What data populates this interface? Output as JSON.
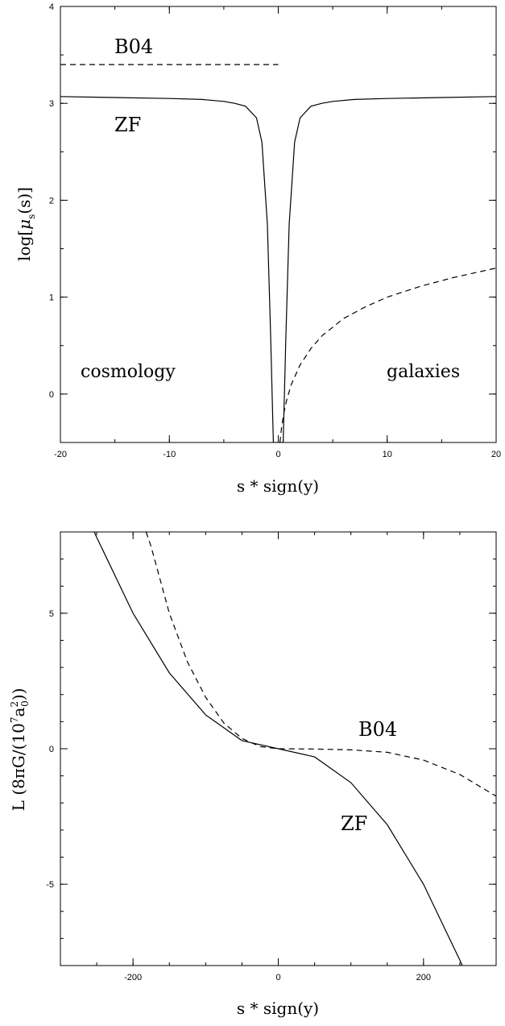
{
  "chart_data": [
    {
      "type": "line",
      "xlabel": "s * sign(y)",
      "ylabel": "log[μs(s)]",
      "xlim": [
        -20,
        20
      ],
      "ylim": [
        -0.5,
        4
      ],
      "xticks": [
        -20,
        -10,
        0,
        10,
        20
      ],
      "yticks": [
        0,
        1,
        2,
        3,
        4
      ],
      "grid": false,
      "annotations": [
        "B04",
        "ZF",
        "cosmology",
        "galaxies"
      ],
      "series": [
        {
          "name": "ZF",
          "style": "solid",
          "x": [
            -20,
            -15,
            -10,
            -7,
            -5,
            -4,
            -3,
            -2,
            -1.5,
            -1,
            -0.7,
            -0.45,
            0,
            0.45,
            0.7,
            1,
            1.5,
            2,
            3,
            4,
            5,
            7,
            10,
            15,
            20
          ],
          "y": [
            3.07,
            3.06,
            3.05,
            3.04,
            3.02,
            3.0,
            2.97,
            2.85,
            2.6,
            1.75,
            0.6,
            -0.5,
            -0.5,
            -0.5,
            0.6,
            1.75,
            2.6,
            2.85,
            2.97,
            3.0,
            3.02,
            3.04,
            3.05,
            3.06,
            3.07
          ]
        },
        {
          "name": "B04",
          "style": "dashed",
          "segments": [
            {
              "x": [
                -20,
                0
              ],
              "y": [
                3.4,
                3.4
              ]
            },
            {
              "x": [
                0.15,
                0.3,
                0.5,
                0.8,
                1.2,
                2,
                3,
                4,
                6,
                8,
                10,
                13,
                16,
                20
              ],
              "y": [
                -0.5,
                -0.35,
                -0.2,
                -0.05,
                0.1,
                0.3,
                0.47,
                0.6,
                0.78,
                0.9,
                1.0,
                1.11,
                1.2,
                1.3
              ]
            }
          ]
        }
      ]
    },
    {
      "type": "line",
      "xlabel": "s * sign(y)",
      "ylabel": "L (8πG/(10⁷a₀²))",
      "xlim": [
        -300,
        300
      ],
      "ylim": [
        -8,
        8
      ],
      "xticks": [
        -200,
        0,
        200
      ],
      "yticks": [
        -5,
        0,
        5
      ],
      "grid": false,
      "annotations": [
        "B04",
        "ZF"
      ],
      "series": [
        {
          "name": "ZF",
          "style": "solid",
          "x": [
            -260,
            -250,
            -200,
            -150,
            -100,
            -50,
            0,
            50,
            100,
            150,
            200,
            250,
            260
          ],
          "y": [
            8.4,
            7.8,
            5.0,
            2.8,
            1.25,
            0.3,
            0,
            -0.3,
            -1.25,
            -2.8,
            -5.0,
            -7.8,
            -8.4
          ]
        },
        {
          "name": "B04",
          "style": "dashed",
          "x": [
            -182,
            -175,
            -150,
            -125,
            -100,
            -75,
            -50,
            -25,
            0,
            50,
            100,
            150,
            200,
            250,
            300
          ],
          "y": [
            8.0,
            7.45,
            5.0,
            3.2,
            1.9,
            0.95,
            0.38,
            0.08,
            0,
            -0.01,
            -0.04,
            -0.13,
            -0.42,
            -0.95,
            -1.75
          ]
        }
      ]
    }
  ],
  "panels": [
    {
      "xlabel": "s * sign(y)",
      "ylabel_main": "log[",
      "ylabel_mu": "μ",
      "ylabel_sub": "s",
      "ylabel_tail": "(s)]",
      "annotations": {
        "b04": "B04",
        "zf": "ZF",
        "left": "cosmology",
        "right": "galaxies"
      }
    },
    {
      "xlabel": "s * sign(y)",
      "ylabel_main": "L (8πG/(10",
      "ylabel_sup7": "7",
      "ylabel_a": "a",
      "ylabel_sup2": "2",
      "ylabel_sub0": "0",
      "ylabel_tail": "))",
      "annotations": {
        "b04": "B04",
        "zf": "ZF"
      }
    }
  ]
}
